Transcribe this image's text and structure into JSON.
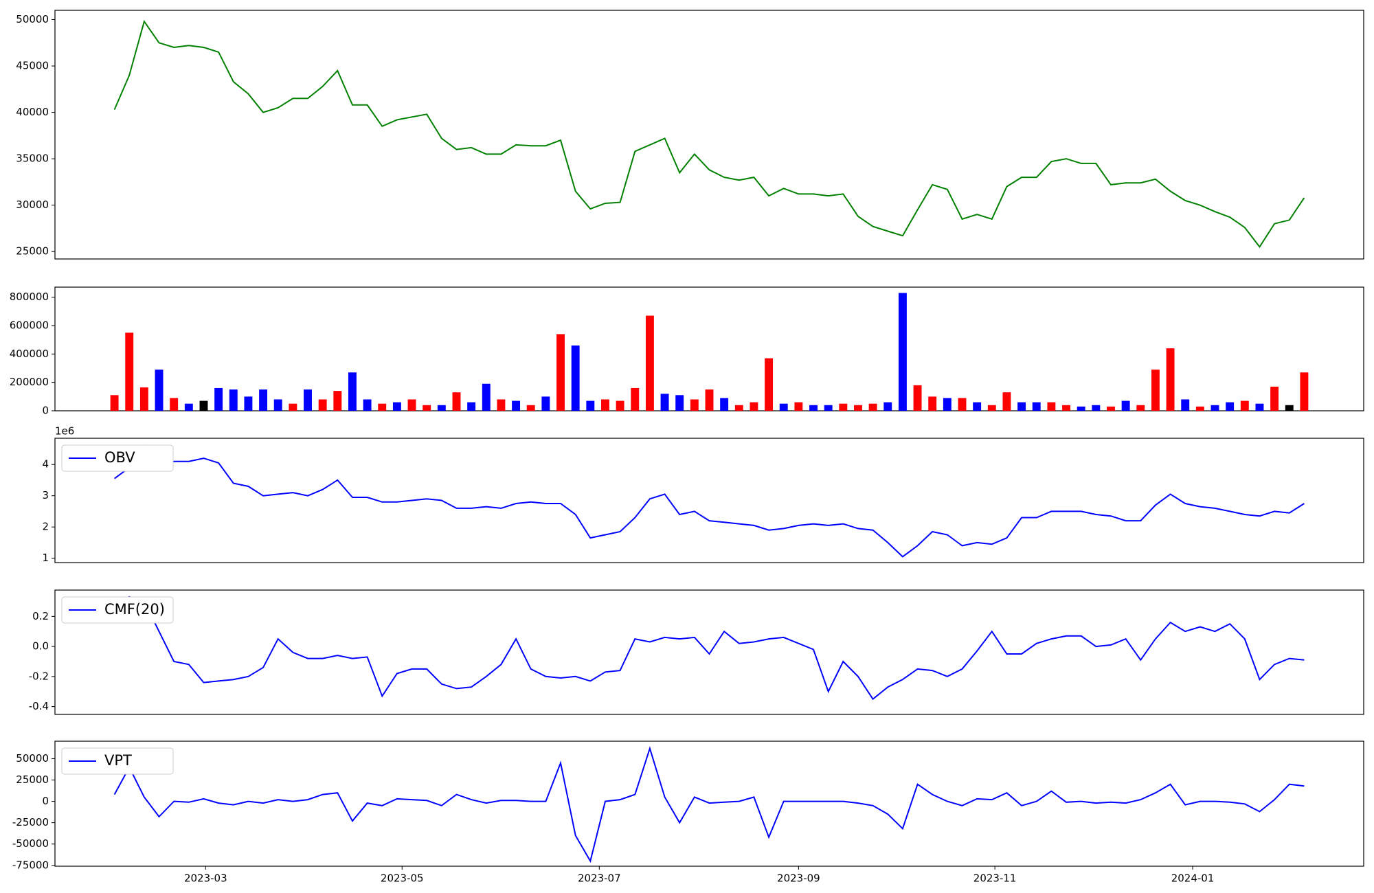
{
  "chart_data": [
    {
      "type": "line",
      "color": "#008000",
      "xlim": [
        -4,
        84
      ],
      "ylim": [
        24200,
        51000
      ],
      "yticks": [
        25000,
        30000,
        35000,
        40000,
        45000,
        50000
      ],
      "values": [
        40300,
        44000,
        49800,
        47500,
        47000,
        47200,
        47000,
        46500,
        43300,
        42000,
        40000,
        40500,
        41500,
        41500,
        42800,
        44500,
        40800,
        40800,
        38500,
        39200,
        39500,
        39800,
        37200,
        36000,
        36200,
        35500,
        35500,
        36500,
        36400,
        36400,
        37000,
        31500,
        29600,
        30200,
        30300,
        35800,
        36500,
        37200,
        33500,
        35500,
        33800,
        33000,
        32700,
        33000,
        31000,
        31800,
        31200,
        31200,
        31000,
        31200,
        28800,
        27700,
        27200,
        26700,
        29500,
        32200,
        31700,
        28500,
        29000,
        28500,
        32000,
        33000,
        33000,
        34700,
        35000,
        34500,
        34500,
        32200,
        32400,
        32400,
        32800,
        31500,
        30500,
        30000,
        29300,
        28700,
        27600,
        25500,
        28000,
        28400,
        30800
      ]
    },
    {
      "type": "bar",
      "xlim": [
        -4,
        84
      ],
      "ylim": [
        0,
        871000
      ],
      "yticks": [
        0,
        200000,
        400000,
        600000,
        800000
      ],
      "values": [
        110000,
        550000,
        165000,
        290000,
        90000,
        50000,
        70000,
        160000,
        150000,
        100000,
        150000,
        80000,
        50000,
        150000,
        80000,
        140000,
        270000,
        80000,
        50000,
        60000,
        80000,
        40000,
        40000,
        130000,
        60000,
        190000,
        80000,
        70000,
        40000,
        100000,
        540000,
        460000,
        70000,
        80000,
        70000,
        160000,
        670000,
        120000,
        110000,
        80000,
        150000,
        90000,
        40000,
        60000,
        370000,
        50000,
        60000,
        40000,
        40000,
        50000,
        40000,
        50000,
        60000,
        830000,
        180000,
        100000,
        90000,
        90000,
        60000,
        40000,
        130000,
        60000,
        60000,
        60000,
        40000,
        30000,
        40000,
        30000,
        70000,
        40000,
        290000,
        440000,
        80000,
        30000,
        40000,
        60000,
        70000,
        50000,
        170000,
        40000,
        270000
      ],
      "colors": [
        "red",
        "red",
        "red",
        "blue",
        "red",
        "blue",
        "black",
        "blue",
        "blue",
        "blue",
        "blue",
        "blue",
        "red",
        "blue",
        "red",
        "red",
        "blue",
        "blue",
        "red",
        "blue",
        "red",
        "red",
        "blue",
        "red",
        "blue",
        "blue",
        "red",
        "blue",
        "red",
        "blue",
        "red",
        "blue",
        "blue",
        "red",
        "red",
        "red",
        "red",
        "blue",
        "blue",
        "red",
        "red",
        "blue",
        "red",
        "red",
        "red",
        "blue",
        "red",
        "blue",
        "blue",
        "red",
        "red",
        "red",
        "blue",
        "blue",
        "red",
        "red",
        "blue",
        "red",
        "blue",
        "red",
        "red",
        "blue",
        "blue",
        "red",
        "red",
        "blue",
        "blue",
        "red",
        "blue",
        "red",
        "red",
        "red",
        "blue",
        "red",
        "blue",
        "blue",
        "red",
        "blue",
        "red",
        "black",
        "red"
      ]
    },
    {
      "type": "line",
      "xlim": [
        -4,
        84
      ],
      "ylim": [
        0.86,
        4.84
      ],
      "yticks": [
        1,
        2,
        3,
        4
      ],
      "y_offset_label": "1e6",
      "legend": "upper left",
      "series": [
        {
          "name": "OBV",
          "color": "#0000ff",
          "values": [
            3.55,
            3.9,
            4.6,
            4.0,
            4.1,
            4.1,
            4.2,
            4.05,
            3.4,
            3.3,
            3.0,
            3.05,
            3.1,
            3.0,
            3.2,
            3.5,
            2.95,
            2.95,
            2.8,
            2.8,
            2.85,
            2.9,
            2.85,
            2.6,
            2.6,
            2.65,
            2.6,
            2.75,
            2.8,
            2.75,
            2.75,
            2.4,
            1.65,
            1.75,
            1.85,
            2.3,
            2.9,
            3.05,
            2.4,
            2.5,
            2.2,
            2.15,
            2.1,
            2.05,
            1.9,
            1.95,
            2.05,
            2.1,
            2.05,
            2.1,
            1.95,
            1.9,
            1.5,
            1.05,
            1.4,
            1.85,
            1.75,
            1.4,
            1.5,
            1.45,
            1.65,
            2.3,
            2.3,
            2.5,
            2.5,
            2.5,
            2.4,
            2.35,
            2.2,
            2.2,
            2.7,
            3.05,
            2.75,
            2.65,
            2.6,
            2.5,
            2.4,
            2.35,
            2.5,
            2.45,
            2.75
          ]
        }
      ]
    },
    {
      "type": "line",
      "xlim": [
        -4,
        84
      ],
      "ylim": [
        -0.452,
        0.375
      ],
      "yticks": [
        -0.4,
        -0.2,
        {
          "value": 0,
          "label": "0.0"
        },
        0.2
      ],
      "legend": "upper left",
      "series": [
        {
          "name": "CMF(20)",
          "color": "#0000ff",
          "values": [
            0.28,
            0.33,
            0.3,
            0.1,
            -0.1,
            -0.12,
            -0.24,
            -0.23,
            -0.22,
            -0.2,
            -0.14,
            0.05,
            -0.04,
            -0.08,
            -0.08,
            -0.06,
            -0.08,
            -0.07,
            -0.33,
            -0.18,
            -0.15,
            -0.15,
            -0.25,
            -0.28,
            -0.27,
            -0.2,
            -0.12,
            0.05,
            -0.15,
            -0.2,
            -0.21,
            -0.2,
            -0.23,
            -0.17,
            -0.16,
            0.05,
            0.03,
            0.06,
            0.05,
            0.06,
            -0.05,
            0.1,
            0.02,
            0.03,
            0.05,
            0.06,
            0.02,
            -0.02,
            -0.3,
            -0.1,
            -0.2,
            -0.35,
            -0.27,
            -0.22,
            -0.15,
            -0.16,
            -0.2,
            -0.15,
            -0.03,
            0.1,
            -0.05,
            -0.05,
            0.02,
            0.05,
            0.07,
            0.07,
            0,
            0.01,
            0.05,
            -0.09,
            0.05,
            0.16,
            0.1,
            0.13,
            0.1,
            0.15,
            0.05,
            -0.22,
            -0.12,
            -0.08,
            -0.09
          ]
        }
      ]
    },
    {
      "type": "line",
      "xlim": [
        -4,
        84
      ],
      "ylim": [
        -76000,
        70500
      ],
      "yticks": [
        -75000,
        -50000,
        -25000,
        0,
        25000,
        50000
      ],
      "legend": "upper left",
      "xticks": [
        {
          "value": 6.13,
          "label": "2023-03"
        },
        {
          "value": 19.34,
          "label": "2023-05"
        },
        {
          "value": 32.6,
          "label": "2023-07"
        },
        {
          "value": 46.0,
          "label": "2023-09"
        },
        {
          "value": 59.2,
          "label": "2023-11"
        },
        {
          "value": 72.5,
          "label": "2024-01"
        }
      ],
      "series": [
        {
          "name": "VPT",
          "color": "#0000ff",
          "values": [
            8000,
            40000,
            5000,
            -18000,
            0,
            -1000,
            3000,
            -2000,
            -4000,
            0,
            -2000,
            2000,
            0,
            2000,
            8000,
            10000,
            -23000,
            -2000,
            -5000,
            3000,
            2000,
            1000,
            -5000,
            8000,
            2000,
            -2000,
            1000,
            1000,
            0,
            0,
            45000,
            -40000,
            -70000,
            0,
            2000,
            8000,
            62000,
            5000,
            -25000,
            5000,
            -2000,
            -1000,
            0,
            5000,
            -42000,
            0,
            0,
            0,
            0,
            0,
            -2000,
            -5000,
            -15000,
            -32000,
            20000,
            8000,
            0,
            -5000,
            3000,
            2000,
            10000,
            -5000,
            0,
            12000,
            -1000,
            0,
            -2000,
            -1000,
            -2000,
            2000,
            10000,
            20000,
            -4000,
            0,
            0,
            -1000,
            -3000,
            -12000,
            2000,
            20000,
            18000
          ]
        }
      ]
    }
  ]
}
